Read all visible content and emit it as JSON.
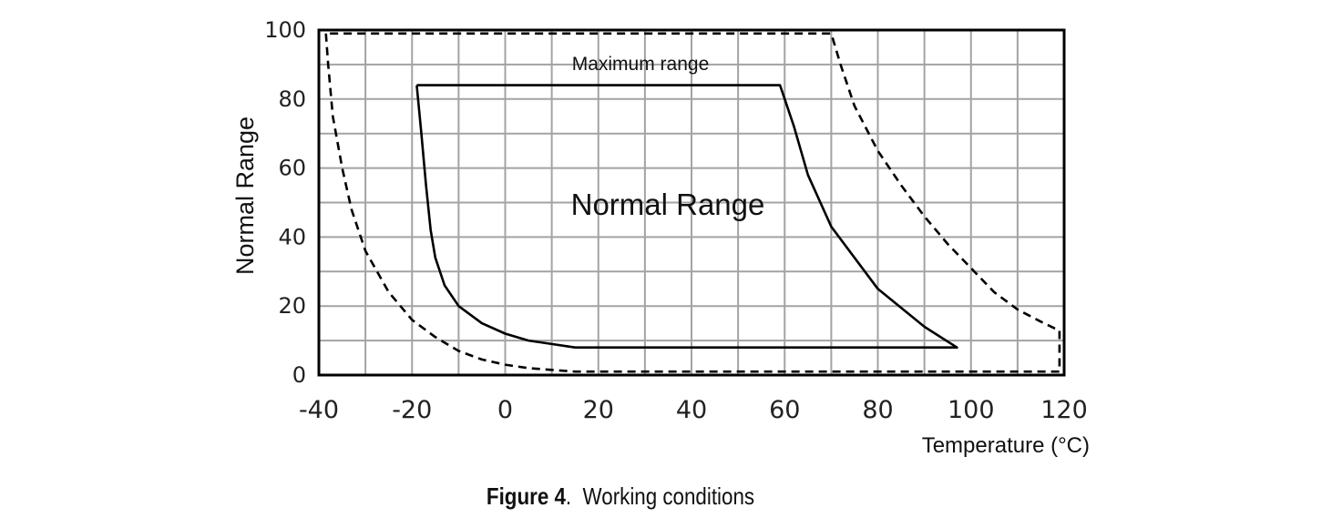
{
  "chart_data": {
    "type": "line",
    "title": "",
    "xlabel": "Temperature (°C)",
    "ylabel": "Normal Range",
    "xlim": [
      -40,
      120
    ],
    "ylim": [
      0,
      100
    ],
    "x_ticks": [
      "-40",
      "-20",
      "0",
      "20",
      "40",
      "60",
      "80",
      "100",
      "120"
    ],
    "y_ticks": [
      "0",
      "20",
      "40",
      "60",
      "80",
      "100"
    ],
    "grid": true,
    "annotations": {
      "maximum": "Maximum range",
      "normal": "Normal Range"
    },
    "series": [
      {
        "style": "dashed",
        "points": [
          [
            -38.5,
            99
          ],
          [
            -38,
            90
          ],
          [
            -37,
            75
          ],
          [
            -35,
            60
          ],
          [
            -33,
            48
          ],
          [
            -30,
            36
          ],
          [
            -25,
            24
          ],
          [
            -20,
            16
          ],
          [
            -15,
            11
          ],
          [
            -10,
            7
          ],
          [
            -5,
            4.5
          ],
          [
            0,
            3
          ],
          [
            5,
            2
          ],
          [
            10,
            1.5
          ],
          [
            15,
            1
          ],
          [
            20,
            1
          ],
          [
            60,
            1
          ],
          [
            119,
            1
          ],
          [
            119,
            13
          ],
          [
            118,
            13.5
          ],
          [
            115,
            15.5
          ],
          [
            110,
            19
          ],
          [
            105,
            24
          ],
          [
            100,
            31
          ],
          [
            95,
            38
          ],
          [
            90,
            46
          ],
          [
            85,
            55
          ],
          [
            80,
            65
          ],
          [
            75,
            78
          ],
          [
            72,
            90
          ],
          [
            70,
            99
          ],
          [
            -38.5,
            99
          ]
        ]
      },
      {
        "style": "solid",
        "points": [
          [
            -19,
            84
          ],
          [
            -18,
            70
          ],
          [
            -17,
            55
          ],
          [
            -16,
            42
          ],
          [
            -15,
            34
          ],
          [
            -13,
            26
          ],
          [
            -10,
            20
          ],
          [
            -5,
            15
          ],
          [
            0,
            12
          ],
          [
            5,
            10
          ],
          [
            10,
            9
          ],
          [
            15,
            8
          ],
          [
            20,
            8
          ],
          [
            97,
            8
          ],
          [
            90,
            14
          ],
          [
            80,
            25
          ],
          [
            70,
            43
          ],
          [
            65,
            58
          ],
          [
            62,
            72
          ],
          [
            60,
            80
          ],
          [
            59,
            84
          ],
          [
            -19,
            84
          ]
        ]
      }
    ]
  },
  "caption": {
    "label": "Figure 4",
    "sep": ".",
    "text": "Working conditions"
  }
}
